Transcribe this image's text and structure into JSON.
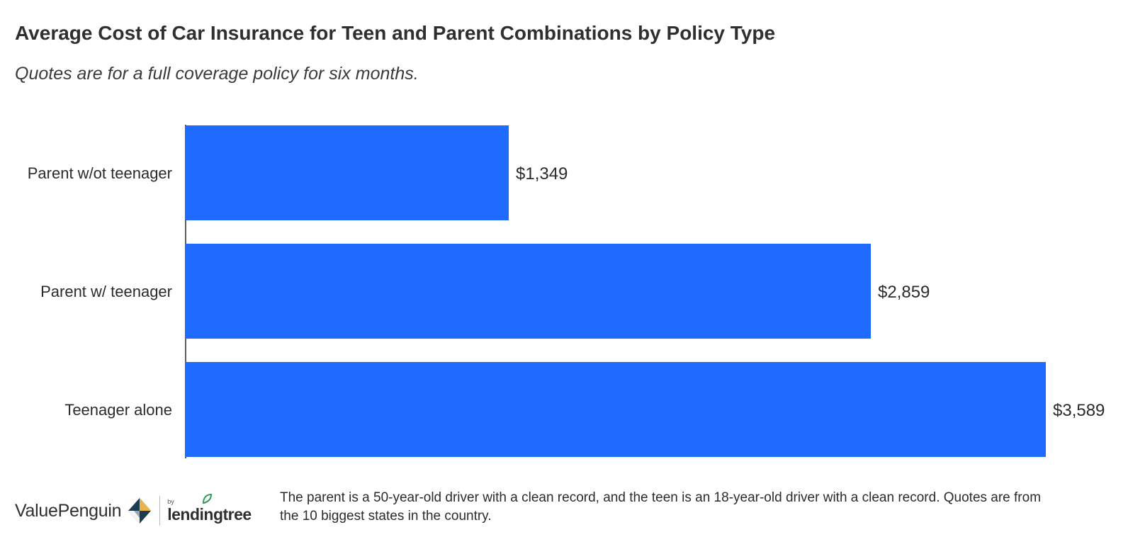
{
  "title": "Average Cost of Car Insurance for Teen and Parent Combinations by Policy Type",
  "subtitle": "Quotes are for a full coverage policy for six months.",
  "chart_data": {
    "type": "bar",
    "orientation": "horizontal",
    "categories": [
      "Parent w/ot teenager",
      "Parent w/ teenager",
      "Teenager alone"
    ],
    "values": [
      1349,
      2859,
      3589
    ],
    "value_labels": [
      "$1,349",
      "$2,859",
      "$3,589"
    ],
    "xlim": [
      0,
      3589
    ],
    "grid": false,
    "legend": "none",
    "bar_color": "#1f6bff"
  },
  "footer": {
    "brand": "ValuePenguin",
    "by": "by",
    "partner": "lendingtree",
    "note": "The parent is a 50-year-old driver with a clean record, and the teen is an 18-year-old driver with a clean record. Quotes are from the 10 biggest states in the country."
  },
  "colors": {
    "bar": "#1f6bff",
    "text": "#2b2b2b",
    "leaf": "#2f9d57",
    "logo_dark": "#1c3c4f",
    "logo_gold": "#e8b54a"
  },
  "icons": [
    "valuepenguin-logo-icon",
    "lendingtree-leaf-icon"
  ]
}
